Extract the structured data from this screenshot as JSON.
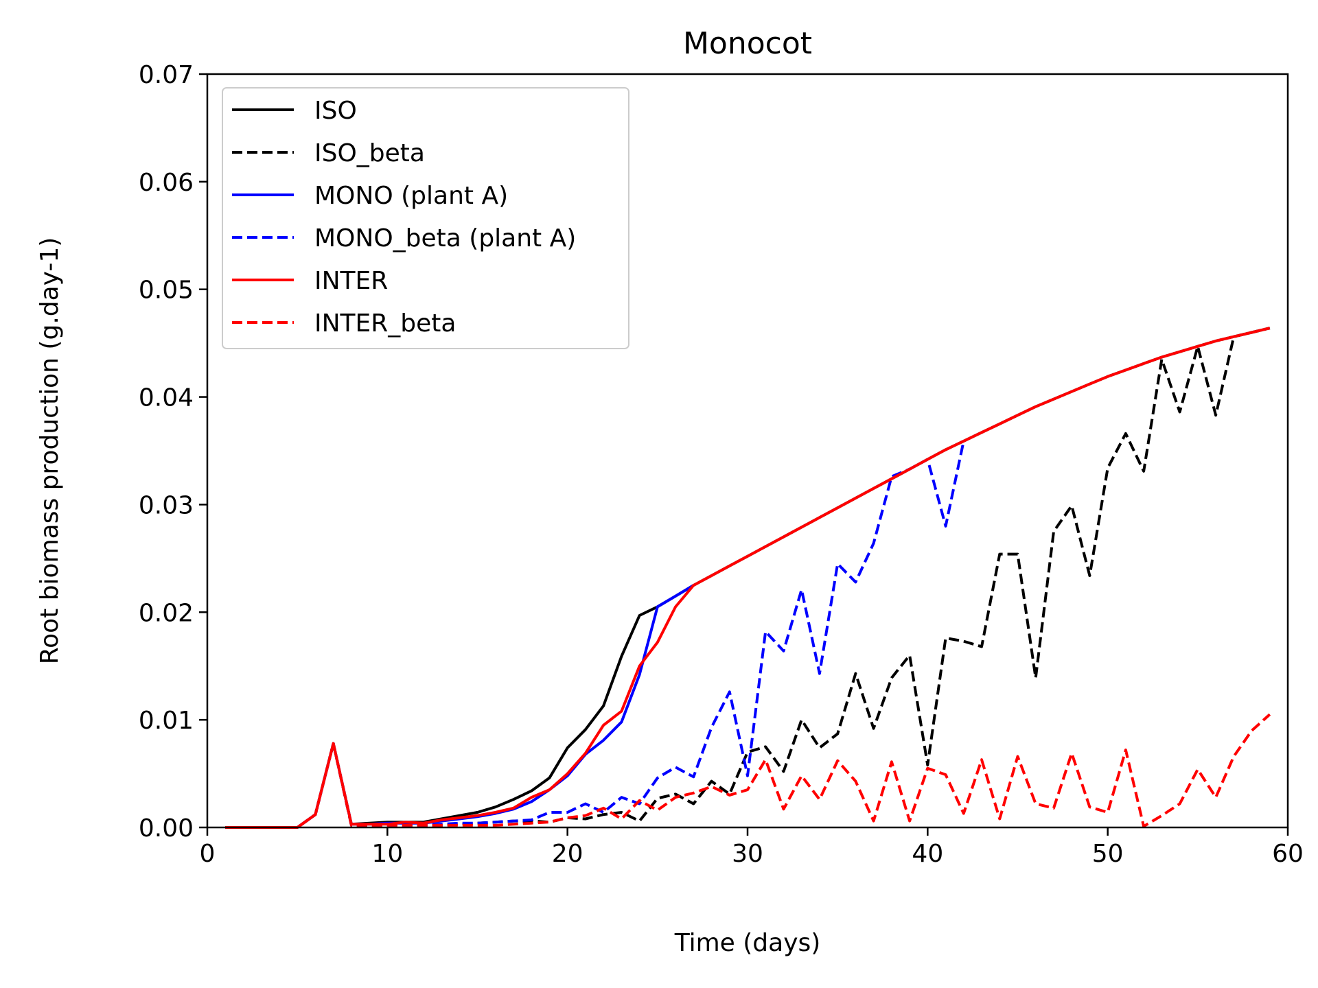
{
  "chart_data": {
    "type": "line",
    "title": "Monocot",
    "xlabel": "Time (days)",
    "ylabel": "Root biomass production (g.day-1)",
    "xlim": [
      0,
      60
    ],
    "ylim": [
      0,
      0.07
    ],
    "xticks": [
      0,
      10,
      20,
      30,
      40,
      50,
      60
    ],
    "xtick_labels": [
      "0",
      "10",
      "20",
      "30",
      "40",
      "50",
      "60"
    ],
    "yticks": [
      0,
      0.01,
      0.02,
      0.03,
      0.04,
      0.05,
      0.06,
      0.07
    ],
    "ytick_labels": [
      "0.00",
      "0.01",
      "0.02",
      "0.03",
      "0.04",
      "0.05",
      "0.06",
      "0.07"
    ],
    "grid": false,
    "legend_position": "top-left",
    "series": [
      {
        "name": "ISO",
        "color": "#000000",
        "style": "solid",
        "x": [
          1,
          2,
          3,
          4,
          5,
          6,
          7,
          8,
          9,
          10,
          11,
          12,
          13,
          14,
          15,
          16,
          17,
          18,
          19,
          20,
          21,
          22,
          23,
          24,
          25,
          26,
          27,
          28,
          29,
          30,
          31,
          32,
          33,
          34,
          35,
          36,
          37,
          38,
          39,
          40,
          41,
          42,
          43,
          44,
          45,
          46,
          47,
          48,
          49,
          50,
          51,
          52,
          53,
          54,
          55,
          56,
          57,
          58,
          59
        ],
        "y": [
          0,
          0,
          0,
          0,
          0,
          0.0012,
          0.0078,
          0.0003,
          0.0004,
          0.0005,
          0.0005,
          0.0005,
          0.0008,
          0.0011,
          0.0014,
          0.0019,
          0.0026,
          0.0034,
          0.0046,
          0.0074,
          0.0091,
          0.0113,
          0.0159,
          0.0197,
          0.0205,
          0.0215,
          0.0225,
          0.0234,
          0.0243,
          0.0252,
          0.0261,
          0.027,
          0.0279,
          0.0288,
          0.0297,
          0.0306,
          0.0315,
          0.0324,
          0.0333,
          0.0342,
          0.0351,
          0.0359,
          0.0367,
          0.0375,
          0.0383,
          0.0391,
          0.0398,
          0.0405,
          0.0412,
          0.0419,
          0.0425,
          0.0431,
          0.0437,
          0.0442,
          0.0447,
          0.0452,
          0.0456,
          0.046,
          0.0464
        ]
      },
      {
        "name": "ISO_beta",
        "color": "#000000",
        "style": "dashed",
        "x": [
          1,
          2,
          3,
          4,
          5,
          6,
          7,
          8,
          9,
          10,
          11,
          12,
          13,
          14,
          15,
          16,
          17,
          18,
          19,
          20,
          21,
          22,
          23,
          24,
          25,
          26,
          27,
          28,
          29,
          30,
          31,
          32,
          33,
          34,
          35,
          36,
          37,
          38,
          39,
          40,
          41,
          42,
          43,
          44,
          45,
          46,
          47,
          48,
          49,
          50,
          51,
          52,
          53,
          54,
          55,
          56,
          57,
          58,
          59
        ],
        "y": [
          0,
          0,
          0,
          0,
          0,
          0.0012,
          0.0078,
          0.0002,
          0.0002,
          0.0003,
          0.0003,
          0.0002,
          0.0002,
          0.0003,
          0.0004,
          0.0005,
          0.0006,
          0.0006,
          0.0005,
          0.0009,
          0.0008,
          0.0012,
          0.0014,
          0.0006,
          0.0027,
          0.0031,
          0.0022,
          0.0043,
          0.0031,
          0.007,
          0.0075,
          0.0052,
          0.01,
          0.0074,
          0.0087,
          0.0143,
          0.0092,
          0.0139,
          0.016,
          0.0058,
          0.0176,
          0.0173,
          0.0168,
          0.0254,
          0.0254,
          0.0139,
          0.0275,
          0.0299,
          0.0234,
          0.0334,
          0.0366,
          0.0331,
          0.0435,
          0.0386,
          0.0447,
          0.0383,
          0.0456,
          0.046,
          0.0464
        ]
      },
      {
        "name": "MONO (plant A)",
        "color": "#0000ff",
        "style": "solid",
        "x": [
          1,
          2,
          3,
          4,
          5,
          6,
          7,
          8,
          9,
          10,
          11,
          12,
          13,
          14,
          15,
          16,
          17,
          18,
          19,
          20,
          21,
          22,
          23,
          24,
          25,
          26,
          27
        ],
        "y": [
          0,
          0,
          0,
          0,
          0,
          0.0012,
          0.0078,
          0.0003,
          0.0003,
          0.0004,
          0.0004,
          0.0004,
          0.0006,
          0.0008,
          0.001,
          0.0013,
          0.0017,
          0.0024,
          0.0035,
          0.0048,
          0.0068,
          0.0081,
          0.0098,
          0.0142,
          0.0205,
          0.0215,
          0.0225
        ]
      },
      {
        "name": "MONO_beta (plant A)",
        "color": "#0000ff",
        "style": "dashed",
        "x": [
          1,
          2,
          3,
          4,
          5,
          6,
          7,
          8,
          9,
          10,
          11,
          12,
          13,
          14,
          15,
          16,
          17,
          18,
          19,
          20,
          21,
          22,
          23,
          24,
          25,
          26,
          27,
          28,
          29,
          30,
          31,
          32,
          33,
          34,
          35,
          36,
          37,
          38,
          39,
          40,
          41,
          42
        ],
        "y": [
          0,
          0,
          0,
          0,
          0,
          0.0012,
          0.0078,
          0.0002,
          0.0002,
          0.0002,
          0.0002,
          0.0002,
          0.0003,
          0.0004,
          0.0004,
          0.0005,
          0.0006,
          0.0007,
          0.0014,
          0.0014,
          0.0022,
          0.0014,
          0.0028,
          0.0022,
          0.0046,
          0.0056,
          0.0047,
          0.0093,
          0.0126,
          0.0048,
          0.0182,
          0.0164,
          0.0221,
          0.0143,
          0.0245,
          0.0228,
          0.0264,
          0.0326,
          0.0333,
          0.0342,
          0.028,
          0.0359
        ]
      },
      {
        "name": "INTER",
        "color": "#ff0000",
        "style": "solid",
        "x": [
          1,
          2,
          3,
          4,
          5,
          6,
          7,
          8,
          9,
          10,
          11,
          12,
          13,
          14,
          15,
          16,
          17,
          18,
          19,
          20,
          21,
          22,
          23,
          24,
          25,
          26,
          27,
          28,
          29,
          30,
          31,
          32,
          33,
          34,
          35,
          36,
          37,
          38,
          39,
          40,
          41,
          42,
          43,
          44,
          45,
          46,
          47,
          48,
          49,
          50,
          51,
          52,
          53,
          54,
          55,
          56,
          57,
          58,
          59
        ],
        "y": [
          0,
          0,
          0,
          0,
          0,
          0.0012,
          0.0078,
          0.0003,
          0.0003,
          0.0003,
          0.0005,
          0.0004,
          0.0007,
          0.0009,
          0.0011,
          0.0014,
          0.0018,
          0.0028,
          0.0035,
          0.005,
          0.0069,
          0.0095,
          0.0108,
          0.015,
          0.0172,
          0.0205,
          0.0225,
          0.0234,
          0.0243,
          0.0252,
          0.0261,
          0.027,
          0.0279,
          0.0288,
          0.0297,
          0.0306,
          0.0315,
          0.0324,
          0.0333,
          0.0342,
          0.0351,
          0.0359,
          0.0367,
          0.0375,
          0.0383,
          0.0391,
          0.0398,
          0.0405,
          0.0412,
          0.0419,
          0.0425,
          0.0431,
          0.0437,
          0.0442,
          0.0447,
          0.0452,
          0.0456,
          0.046,
          0.0464
        ]
      },
      {
        "name": "INTER_beta",
        "color": "#ff0000",
        "style": "dashed",
        "x": [
          1,
          2,
          3,
          4,
          5,
          6,
          7,
          8,
          9,
          10,
          11,
          12,
          13,
          14,
          15,
          16,
          17,
          18,
          19,
          20,
          21,
          22,
          23,
          24,
          25,
          26,
          27,
          28,
          29,
          30,
          31,
          32,
          33,
          34,
          35,
          36,
          37,
          38,
          39,
          40,
          41,
          42,
          43,
          44,
          45,
          46,
          47,
          48,
          49,
          50,
          51,
          52,
          53,
          54,
          55,
          56,
          57,
          58,
          59
        ],
        "y": [
          0,
          0,
          0,
          0,
          0,
          0.0012,
          0.0078,
          0.0002,
          0.0002,
          0.0002,
          0.0002,
          0.0002,
          0.0002,
          0.0002,
          0.0002,
          0.0002,
          0.0003,
          0.0004,
          0.0005,
          0.0009,
          0.0011,
          0.0018,
          0.0008,
          0.0025,
          0.0016,
          0.0028,
          0.0032,
          0.0038,
          0.003,
          0.0035,
          0.0063,
          0.0017,
          0.0048,
          0.0026,
          0.0062,
          0.0043,
          0.0006,
          0.0061,
          0.0006,
          0.0055,
          0.0049,
          0.0013,
          0.0063,
          0.0008,
          0.0066,
          0.0022,
          0.0018,
          0.0069,
          0.0019,
          0.0014,
          0.0072,
          0.0001,
          0.0011,
          0.0022,
          0.0054,
          0.0028,
          0.0066,
          0.009,
          0.0105
        ]
      }
    ]
  }
}
